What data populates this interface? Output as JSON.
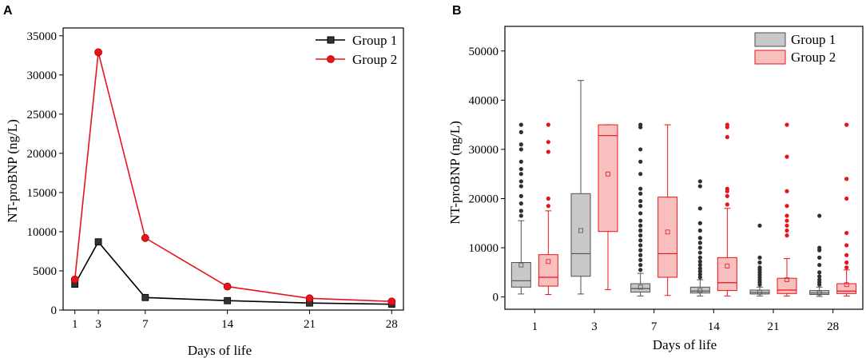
{
  "figure": {
    "panels": [
      {
        "letter": "A"
      },
      {
        "letter": "B"
      }
    ]
  },
  "chart_data": [
    {
      "type": "line",
      "panel": "A",
      "title": "",
      "xlabel": "Days of life",
      "ylabel": "NT-proBNP (ng/L)",
      "x": [
        1,
        3,
        7,
        14,
        21,
        28
      ],
      "xticks": [
        "1",
        "3",
        "7",
        "14",
        "21",
        "28"
      ],
      "xlim": [
        0,
        29
      ],
      "ylim": [
        0,
        36000
      ],
      "yticks": [
        0,
        5000,
        10000,
        15000,
        20000,
        25000,
        30000,
        35000
      ],
      "legend": "top-right",
      "grid": false,
      "series": [
        {
          "name": "Group 1",
          "color": "#000000",
          "marker": "square",
          "values": [
            3300,
            8700,
            1600,
            1200,
            900,
            750
          ]
        },
        {
          "name": "Group 2",
          "color": "#e8141b",
          "marker": "circle",
          "values": [
            3900,
            32900,
            9200,
            3000,
            1500,
            1100
          ]
        }
      ]
    },
    {
      "type": "box",
      "panel": "B",
      "title": "",
      "xlabel": "Days of life",
      "ylabel": "NT-proBNP (ng/L)",
      "categories": [
        "1",
        "3",
        "7",
        "14",
        "21",
        "28"
      ],
      "ylim": [
        -2500,
        55000
      ],
      "yticks": [
        0,
        10000,
        20000,
        30000,
        40000,
        50000
      ],
      "legend": "top-right",
      "grid": false,
      "series": [
        {
          "name": "Group 1",
          "fill": "#c8c8c8",
          "stroke": "#505050",
          "outlier_color": "#303030",
          "boxes": [
            {
              "whisker_low": 600,
              "q1": 2000,
              "median": 3300,
              "q3": 7000,
              "whisker_high": 15500,
              "mean": 6500,
              "outliers": [
                16500,
                17500,
                19000,
                20500,
                22500,
                23500,
                25000,
                26000,
                27500,
                30000,
                31000,
                33500,
                35000
              ]
            },
            {
              "whisker_low": 600,
              "q1": 4200,
              "median": 8800,
              "q3": 21000,
              "whisker_high": 44000,
              "mean": 13500,
              "outliers": []
            },
            {
              "whisker_low": 200,
              "q1": 1000,
              "median": 1700,
              "q3": 2700,
              "whisker_high": 4800,
              "mean": 2000,
              "outliers": [
                5500,
                6500,
                7500,
                8500,
                9500,
                10500,
                11500,
                12500,
                13500,
                14500,
                15500,
                17000,
                18500,
                19500,
                21000,
                22000,
                25000,
                27500,
                30000,
                34500,
                35000
              ]
            },
            {
              "whisker_low": 200,
              "q1": 800,
              "median": 1200,
              "q3": 2000,
              "whisker_high": 3500,
              "mean": 1300,
              "outliers": [
                4000,
                4600,
                5200,
                5800,
                6500,
                7200,
                8000,
                9000,
                10000,
                11000,
                12000,
                13500,
                15000,
                18000,
                22500,
                23500
              ]
            },
            {
              "whisker_low": 200,
              "q1": 600,
              "median": 900,
              "q3": 1400,
              "whisker_high": 2000,
              "mean": 950,
              "outliers": [
                2500,
                3000,
                3500,
                4000,
                4500,
                5000,
                5500,
                6000,
                7000,
                8000,
                14500
              ]
            },
            {
              "whisker_low": 100,
              "q1": 500,
              "median": 800,
              "q3": 1300,
              "whisker_high": 2000,
              "mean": 800,
              "outliers": [
                2500,
                3000,
                3500,
                4200,
                5000,
                6500,
                8000,
                9500,
                10000,
                16500
              ]
            }
          ]
        },
        {
          "name": "Group 2",
          "fill": "#f8bfbf",
          "stroke": "#e8141b",
          "outlier_color": "#e8141b",
          "boxes": [
            {
              "whisker_low": 500,
              "q1": 2200,
              "median": 4000,
              "q3": 8600,
              "whisker_high": 17500,
              "mean": 7200,
              "outliers": [
                18500,
                20000,
                29500,
                31500,
                35000
              ]
            },
            {
              "whisker_low": 1500,
              "q1": 13300,
              "median": 32800,
              "q3": 35000,
              "whisker_high": 35000,
              "mean": 25000,
              "outliers": []
            },
            {
              "whisker_low": 300,
              "q1": 4000,
              "median": 8800,
              "q3": 20300,
              "whisker_high": 35000,
              "mean": 13200,
              "outliers": []
            },
            {
              "whisker_low": 200,
              "q1": 1300,
              "median": 2900,
              "q3": 8000,
              "whisker_high": 18000,
              "mean": 6300,
              "outliers": [
                18800,
                20500,
                21500,
                22000,
                32500,
                34500,
                35000
              ]
            },
            {
              "whisker_low": 200,
              "q1": 700,
              "median": 1400,
              "q3": 3800,
              "whisker_high": 7800,
              "mean": 3500,
              "outliers": [
                12500,
                13500,
                14500,
                15500,
                16500,
                18500,
                21500,
                28500,
                35000
              ]
            },
            {
              "whisker_low": 200,
              "q1": 700,
              "median": 1200,
              "q3": 2700,
              "whisker_high": 5500,
              "mean": 2500,
              "outliers": [
                6000,
                7000,
                8500,
                10500,
                13000,
                20000,
                24000,
                35000
              ]
            }
          ]
        }
      ]
    }
  ]
}
